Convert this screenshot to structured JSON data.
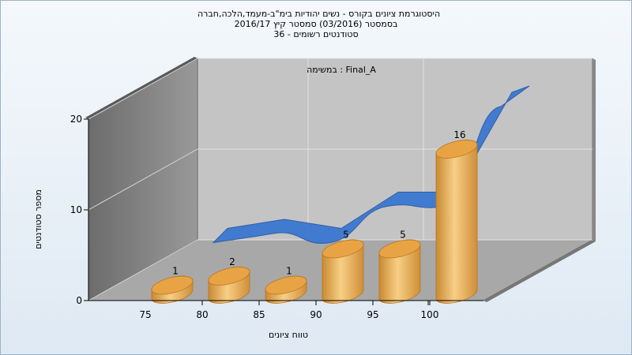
{
  "title": {
    "line1": "היסטוגרמת ציונים בקורס - נשים יהודיות בימ\"ב-מעמד,הלכה,חברה",
    "line2": "בסמסטר  (03/2016)  סמסטר קיץ  2016/17",
    "line3": "סטודנטים רשומים - 36"
  },
  "colors": {
    "bar_light": "#f6c574",
    "bar_mid": "#e8a444",
    "bar_dark": "#b87521",
    "ribbon": "#3a78d0",
    "ribbon_dark": "#2a5aa6",
    "back_wall": "#c4c4c4",
    "side_wall": "#7d7d7d",
    "floor": "#a8a8a8"
  },
  "chart_data": {
    "type": "bar",
    "title": "במשימה : Final_A",
    "xlabel": "טווח ציונים",
    "ylabel": "מספר סטודנטים",
    "categories": [
      "75",
      "80",
      "85",
      "90",
      "95",
      "100"
    ],
    "x_ticks": [
      "75",
      "80",
      "85",
      "90",
      "95",
      "100"
    ],
    "y_ticks": [
      "0",
      "10",
      "20"
    ],
    "ylim": [
      0,
      20
    ],
    "series": [
      {
        "values": [
          1,
          2,
          1,
          5,
          5,
          16
        ]
      }
    ],
    "data_labels": [
      "1",
      "2",
      "1",
      "5",
      "5",
      "16"
    ],
    "grid": true
  }
}
